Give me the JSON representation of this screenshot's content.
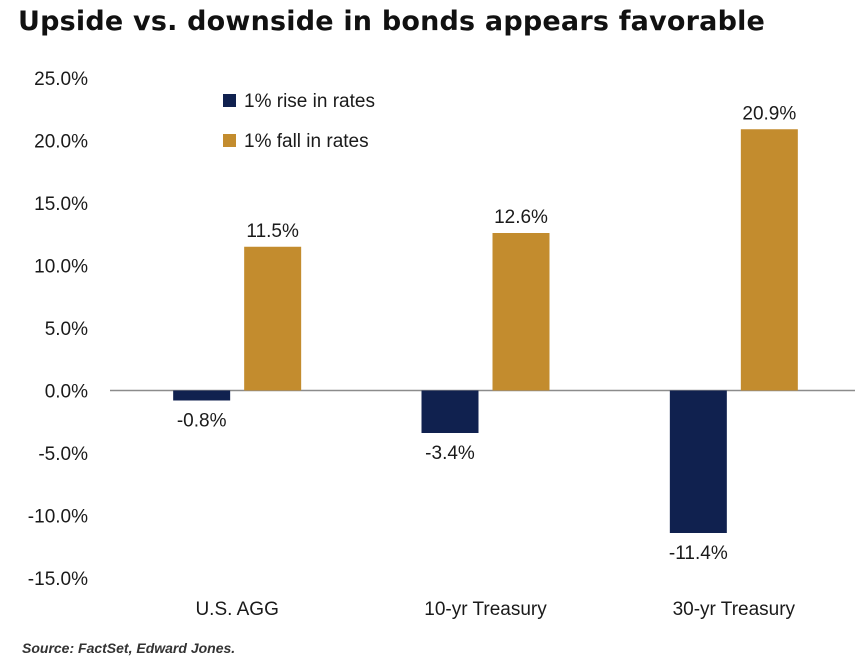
{
  "title": "Upside vs. downside in bonds appears favorable",
  "source": "Source: FactSet, Edward Jones.",
  "colors": {
    "rise": "#10214f",
    "fall": "#c38c2e",
    "axis_line": "#8c8c8c",
    "text": "#1a1a1a"
  },
  "chart_data": {
    "type": "bar",
    "categories": [
      "U.S. AGG",
      "10-yr Treasury",
      "30-yr Treasury"
    ],
    "series": [
      {
        "name": "1% rise in rates",
        "values": [
          -0.8,
          -3.4,
          -11.4
        ],
        "labels": [
          "-0.8%",
          "-3.4%",
          "-11.4%"
        ]
      },
      {
        "name": "1% fall in rates",
        "values": [
          11.5,
          12.6,
          20.9
        ],
        "labels": [
          "11.5%",
          "12.6%",
          "20.9%"
        ]
      }
    ],
    "ylim": [
      -15,
      25
    ],
    "yticks": [
      25,
      20,
      15,
      10,
      5,
      0,
      -5,
      -10,
      -15
    ],
    "ytick_labels": [
      "25.0%",
      "20.0%",
      "15.0%",
      "10.0%",
      "5.0%",
      "0.0%",
      "-5.0%",
      "-10.0%",
      "-15.0%"
    ],
    "legend": "top-left",
    "grid": false
  }
}
